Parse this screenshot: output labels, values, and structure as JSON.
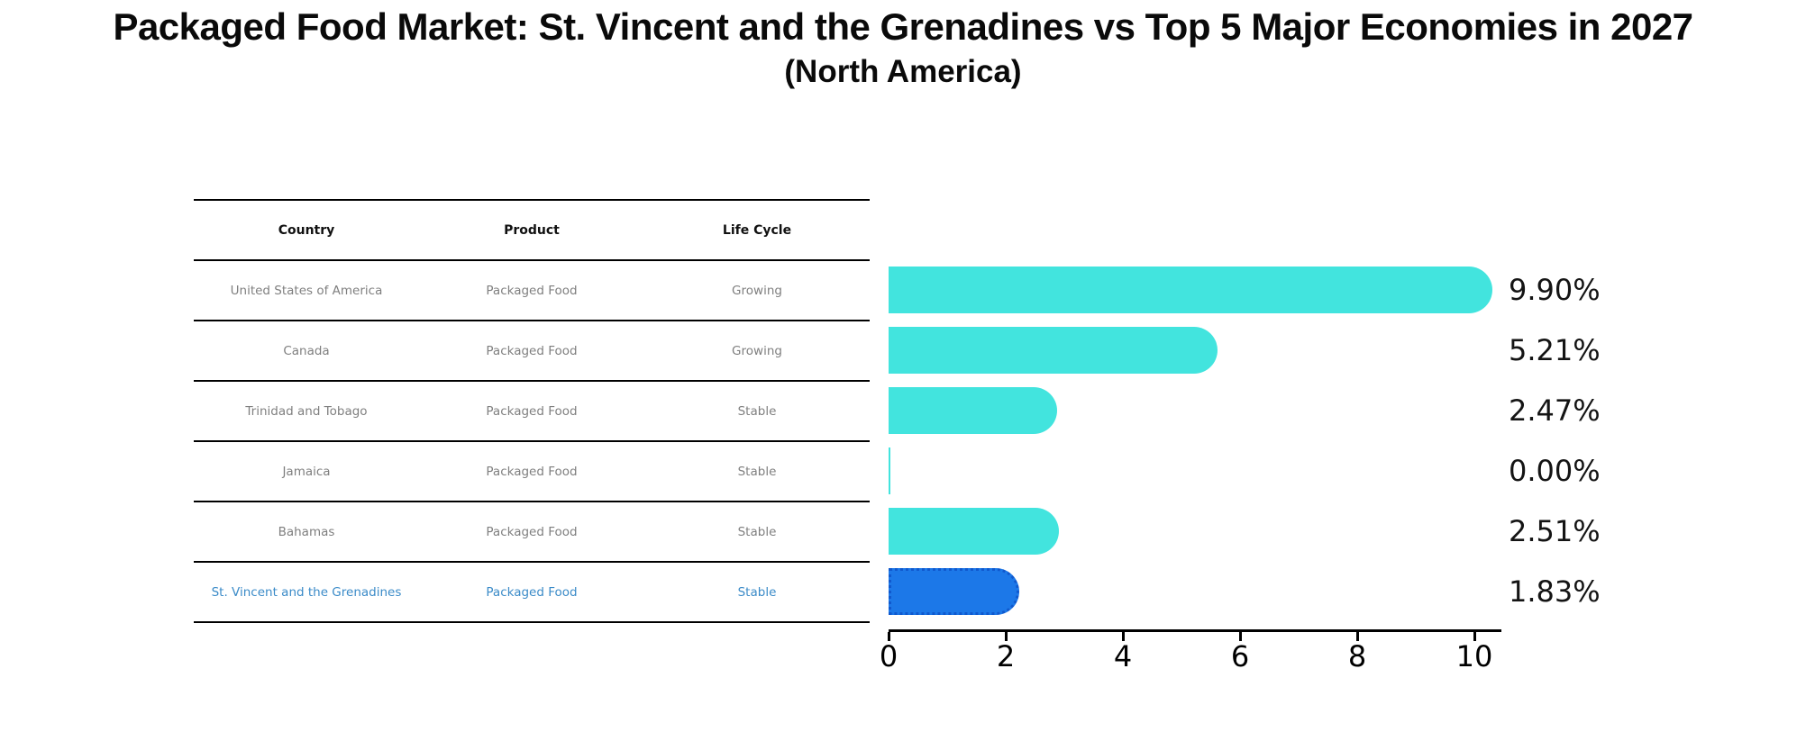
{
  "title": "Packaged Food Market: St. Vincent and the Grenadines vs Top 5 Major Economies in 2027",
  "subtitle": "(North America)",
  "table": {
    "headers": [
      "Country",
      "Product",
      "Life Cycle"
    ],
    "rows": [
      {
        "country": "United States of America",
        "product": "Packaged Food",
        "life_cycle": "Growing",
        "highlight": false
      },
      {
        "country": "Canada",
        "product": "Packaged Food",
        "life_cycle": "Growing",
        "highlight": false
      },
      {
        "country": "Trinidad and Tobago",
        "product": "Packaged Food",
        "life_cycle": "Stable",
        "highlight": false
      },
      {
        "country": "Jamaica",
        "product": "Packaged Food",
        "life_cycle": "Stable",
        "highlight": false
      },
      {
        "country": "Bahamas",
        "product": "Packaged Food",
        "life_cycle": "Stable",
        "highlight": false
      },
      {
        "country": "St. Vincent and the Grenadines",
        "product": "Packaged Food",
        "life_cycle": "Stable",
        "highlight": true
      }
    ]
  },
  "chart_data": {
    "type": "bar",
    "orientation": "horizontal",
    "title": "Packaged Food Market: St. Vincent and the Grenadines vs Top 5 Major Economies in 2027 (North America)",
    "categories": [
      "United States of America",
      "Canada",
      "Trinidad and Tobago",
      "Jamaica",
      "Bahamas",
      "St. Vincent and the Grenadines"
    ],
    "values": [
      9.9,
      5.21,
      2.47,
      0.0,
      2.51,
      1.83
    ],
    "value_labels": [
      "9.90%",
      "5.21%",
      "2.47%",
      "0.00%",
      "2.51%",
      "1.83%"
    ],
    "x_ticks": [
      0,
      2,
      4,
      6,
      8,
      10
    ],
    "xlim": [
      0,
      10.5
    ],
    "xlabel": "",
    "ylabel": "",
    "grid": false,
    "legend": false,
    "highlight_index": 5
  },
  "colors": {
    "bar": "#42E4DE",
    "highlight_bar": "#1C78E8",
    "highlight_bar_border": "#1059CE",
    "highlight_text": "#3B8BC8",
    "muted_text": "#7f7f7f",
    "axis": "#000000"
  }
}
